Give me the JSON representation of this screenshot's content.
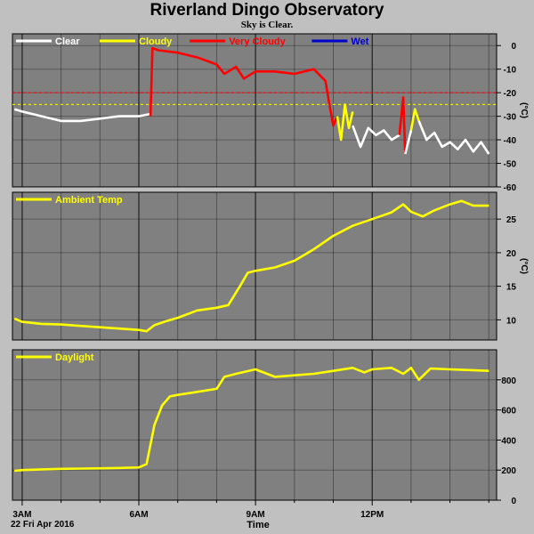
{
  "title": "Riverland Dingo Observatory",
  "subtitle": "Sky is Clear.",
  "xaxis": {
    "title": "Time",
    "date": "22 Fri Apr 2016",
    "ticks": [
      "3AM",
      "6AM",
      "9AM",
      "12PM"
    ]
  },
  "colors": {
    "panel_bg": "#808080",
    "frame_bg": "#c0c0c0",
    "clear": "#ffffff",
    "cloudy": "#ffff00",
    "very_cloudy": "#ff0000",
    "wet": "#0000cc"
  },
  "chart_data": [
    {
      "type": "line",
      "name": "sky-temperature",
      "ylabel": "(°C)",
      "ylim": [
        -60,
        5
      ],
      "yticks": [
        0,
        -10,
        -20,
        -30,
        -40,
        -50,
        -60
      ],
      "grid": true,
      "legend": [
        {
          "label": "Clear",
          "color": "#ffffff"
        },
        {
          "label": "Cloudy",
          "color": "#ffff00"
        },
        {
          "label": "Very Cloudy",
          "color": "#ff0000"
        },
        {
          "label": "Wet",
          "color": "#0000cc"
        }
      ],
      "reference_lines": [
        {
          "y": -20,
          "color": "#ff0000"
        },
        {
          "y": -25,
          "color": "#ffff00"
        }
      ],
      "segments": [
        {
          "condition": "Clear",
          "x": [
            2.8,
            3.0,
            3.5,
            4.0,
            4.5,
            5.0,
            5.5,
            6.0,
            6.3
          ],
          "y": [
            -27,
            -28,
            -30,
            -32,
            -32,
            -31,
            -30,
            -30,
            -29
          ]
        },
        {
          "condition": "Very Cloudy",
          "x": [
            6.3,
            6.35,
            6.5,
            7.0,
            7.5,
            8.0,
            8.2,
            8.5,
            8.7,
            9.0,
            9.5,
            10.0,
            10.5,
            10.8,
            10.9,
            11.0,
            11.1
          ],
          "y": [
            -30,
            -1,
            -2,
            -3,
            -5,
            -8,
            -12,
            -9,
            -14,
            -11,
            -11,
            -12,
            -10,
            -15,
            -25,
            -34,
            -30
          ]
        },
        {
          "condition": "Cloudy",
          "x": [
            11.1,
            11.2,
            11.3,
            11.4,
            11.5
          ],
          "y": [
            -30,
            -40,
            -25,
            -35,
            -28
          ]
        },
        {
          "condition": "Clear",
          "x": [
            11.5,
            11.7,
            11.9,
            12.1,
            12.3,
            12.5,
            12.7
          ],
          "y": [
            -34,
            -43,
            -35,
            -38,
            -36,
            -40,
            -38
          ]
        },
        {
          "condition": "Very Cloudy",
          "x": [
            12.7,
            12.8,
            12.85
          ],
          "y": [
            -38,
            -22,
            -46
          ]
        },
        {
          "condition": "Clear",
          "x": [
            12.85,
            13.0
          ],
          "y": [
            -46,
            -36
          ]
        },
        {
          "condition": "Cloudy",
          "x": [
            13.0,
            13.1,
            13.2
          ],
          "y": [
            -36,
            -27,
            -32
          ]
        },
        {
          "condition": "Clear",
          "x": [
            13.2,
            13.4,
            13.6,
            13.8,
            14.0,
            14.2,
            14.4,
            14.6,
            14.8,
            15.0
          ],
          "y": [
            -32,
            -40,
            -37,
            -43,
            -41,
            -44,
            -40,
            -45,
            -41,
            -46
          ]
        }
      ]
    },
    {
      "type": "line",
      "name": "ambient-temperature",
      "ylabel": "(°C)",
      "ylim": [
        7,
        29
      ],
      "yticks": [
        10,
        15,
        20,
        25
      ],
      "grid": true,
      "legend": [
        {
          "label": "Ambient Temp",
          "color": "#ffff00"
        }
      ],
      "series": [
        {
          "name": "Ambient Temp",
          "color": "#ffff00",
          "x": [
            2.8,
            3.0,
            3.5,
            4.0,
            4.5,
            5.0,
            5.5,
            6.0,
            6.2,
            6.4,
            6.7,
            7.0,
            7.5,
            8.0,
            8.3,
            8.6,
            8.8,
            9.0,
            9.5,
            10.0,
            10.5,
            11.0,
            11.5,
            12.0,
            12.5,
            12.8,
            13.0,
            13.3,
            13.6,
            14.0,
            14.3,
            14.6,
            15.0
          ],
          "y": [
            10.2,
            9.7,
            9.4,
            9.3,
            9.1,
            8.9,
            8.7,
            8.5,
            8.3,
            9.2,
            9.8,
            10.3,
            11.4,
            11.8,
            12.2,
            15.0,
            17.0,
            17.3,
            17.8,
            18.8,
            20.5,
            22.5,
            24.0,
            25.0,
            26.0,
            27.2,
            26.1,
            25.4,
            26.3,
            27.2,
            27.7,
            27.0,
            27.0
          ]
        }
      ]
    },
    {
      "type": "line",
      "name": "daylight",
      "ylabel": "",
      "ylim": [
        0,
        1000
      ],
      "yticks": [
        0,
        200,
        400,
        600,
        800
      ],
      "grid": true,
      "legend": [
        {
          "label": "Daylight",
          "color": "#ffff00"
        }
      ],
      "series": [
        {
          "name": "Daylight",
          "color": "#ffff00",
          "x": [
            2.8,
            3.0,
            3.5,
            4.0,
            4.5,
            5.0,
            5.5,
            6.0,
            6.2,
            6.4,
            6.6,
            6.8,
            7.0,
            7.5,
            8.0,
            8.2,
            8.5,
            9.0,
            9.5,
            10.0,
            10.5,
            11.0,
            11.5,
            11.8,
            12.0,
            12.5,
            12.8,
            13.0,
            13.2,
            13.5,
            14.0,
            14.5,
            15.0
          ],
          "y": [
            195,
            200,
            205,
            208,
            210,
            212,
            214,
            218,
            240,
            500,
            630,
            690,
            700,
            720,
            740,
            820,
            840,
            870,
            820,
            830,
            840,
            860,
            880,
            850,
            870,
            880,
            840,
            880,
            800,
            875,
            870,
            865,
            860
          ]
        }
      ]
    }
  ]
}
